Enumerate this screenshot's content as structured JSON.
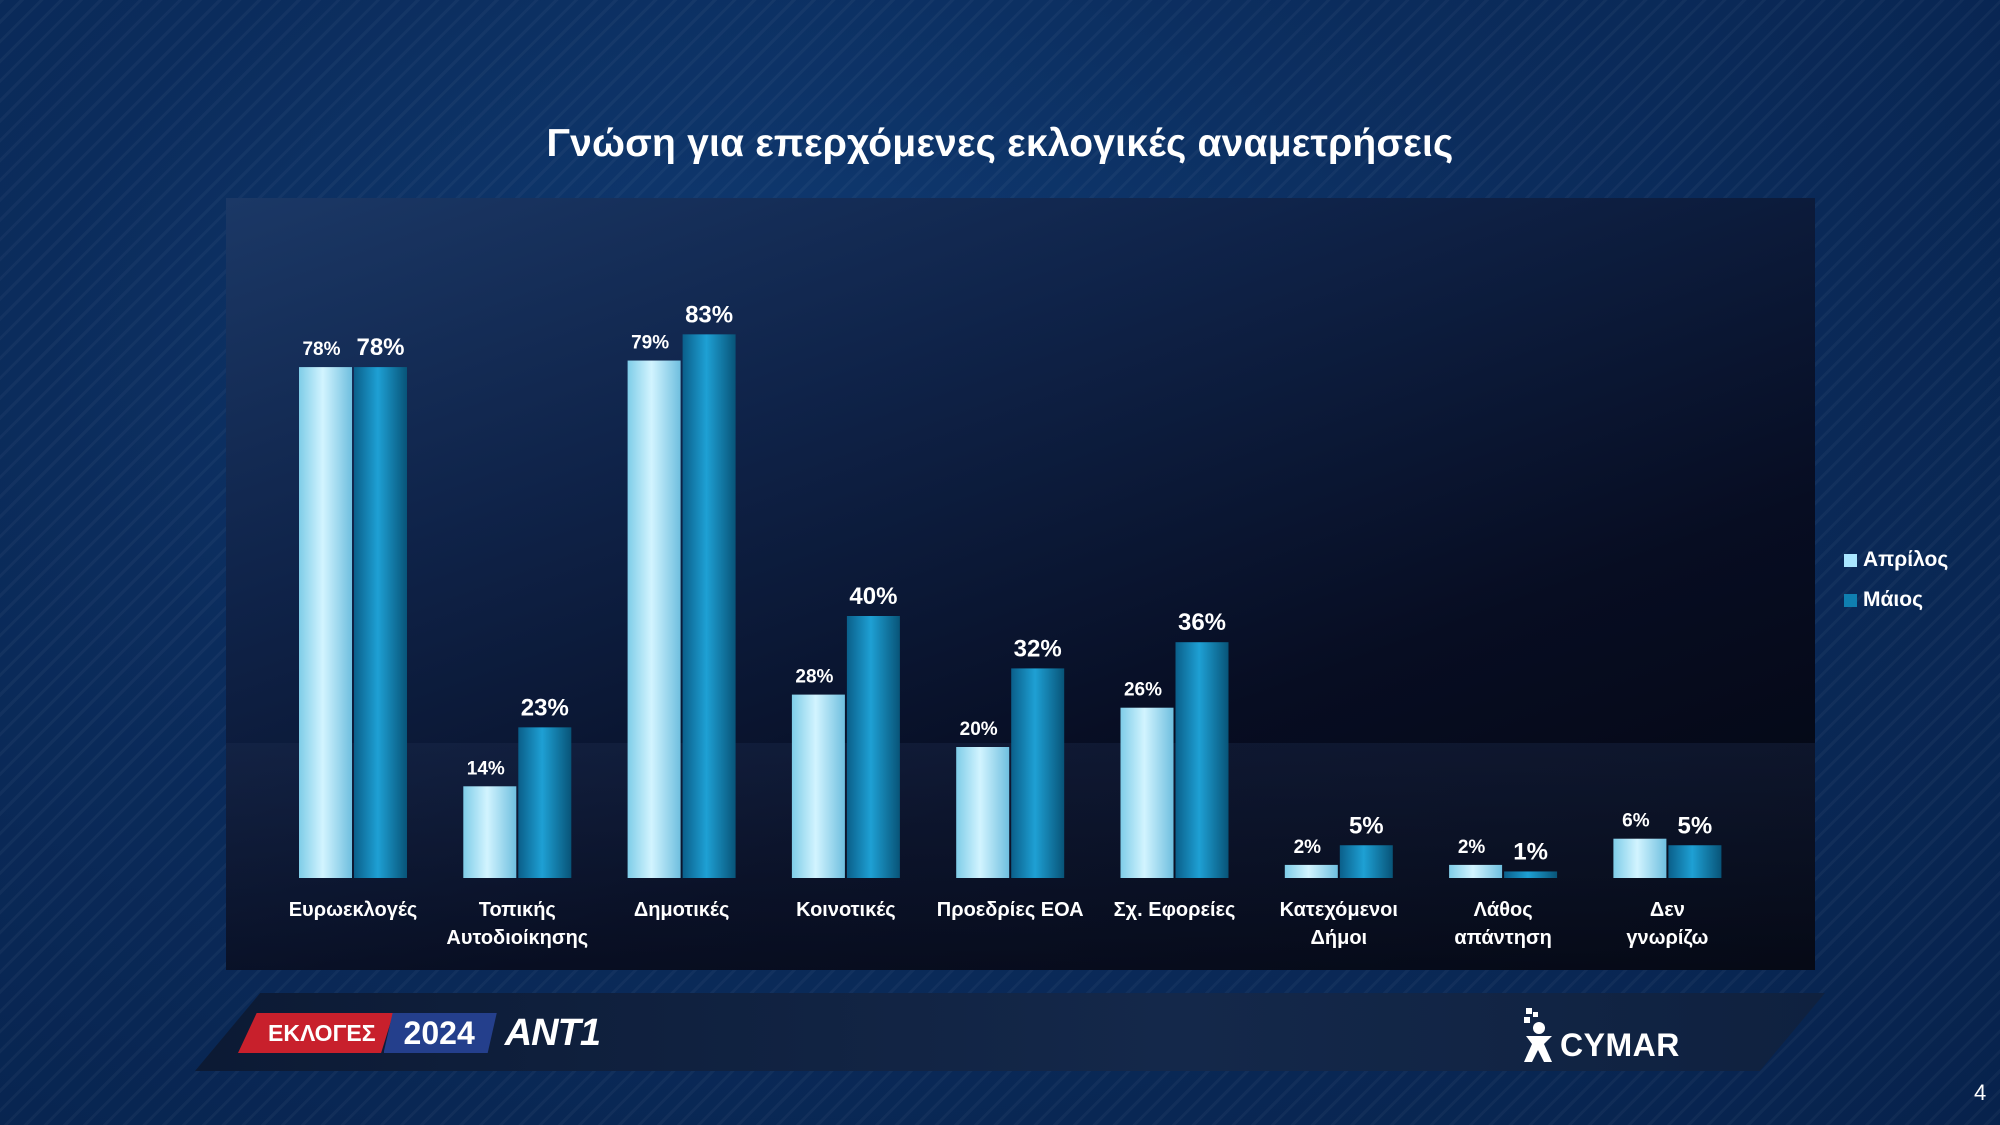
{
  "slide": {
    "title": "Γνώση για επερχόμενες εκλογικές αναμετρήσεις",
    "page_number": "4"
  },
  "legend": {
    "items": [
      {
        "label": "Απρίλος",
        "color": "#a9e6ff"
      },
      {
        "label": "Μάιος",
        "color": "#0f7fb0"
      }
    ]
  },
  "branding": {
    "ekloges": "ΕΚΛΟΓΕΣ",
    "year": "2024",
    "channel": "ANT1",
    "pollster": "CYMAR"
  },
  "chart_data": {
    "type": "bar",
    "title": "Γνώση για επερχόμενες εκλογικές αναμετρήσεις",
    "categories": [
      [
        "Ευρωεκλογές"
      ],
      [
        "Τοπικής",
        "Αυτοδιοίκησης"
      ],
      [
        "Δημοτικές"
      ],
      [
        "Κοινοτικές"
      ],
      [
        "Προεδρίες ΕΟΑ"
      ],
      [
        "Σχ. Εφορείες"
      ],
      [
        "Κατεχόμενοι",
        "Δήμοι"
      ],
      [
        "Λάθος",
        "απάντηση"
      ],
      [
        "Δεν",
        "γνωρίζω"
      ]
    ],
    "series": [
      {
        "name": "Απρίλος",
        "color": "#a9e6ff",
        "values": [
          78,
          14,
          79,
          28,
          20,
          26,
          2,
          2,
          6
        ]
      },
      {
        "name": "Μάιος",
        "color": "#0f7fb0",
        "values": [
          78,
          23,
          83,
          40,
          32,
          36,
          5,
          1,
          5
        ]
      }
    ],
    "value_suffix": "%",
    "ylim": [
      0,
      100
    ],
    "grid": false,
    "legend_position": "right"
  }
}
